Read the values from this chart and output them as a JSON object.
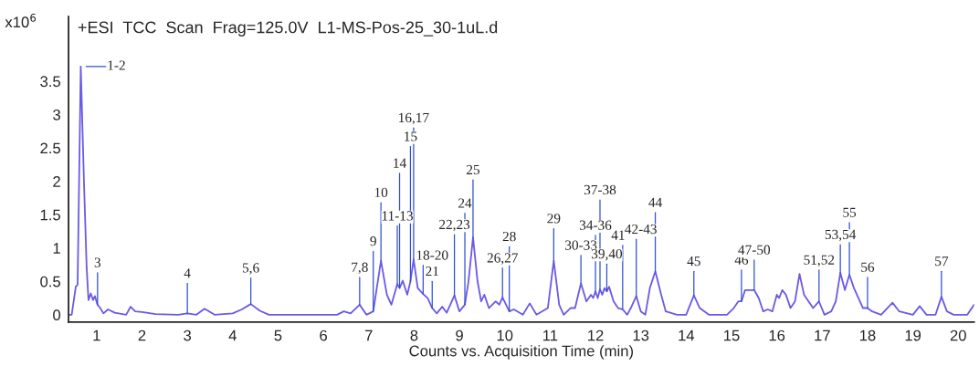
{
  "chart_data": {
    "type": "line",
    "title": "+ESI  TCC  Scan  Frag=125.0V  L1-MS-Pos-25_30-1uL.d",
    "xlabel": "Counts vs. Acquisition Time (min)",
    "xlim": [
      0.38,
      20.35
    ],
    "ylim": [
      -0.11,
      4.47
    ],
    "xticks": [
      1,
      2,
      3,
      4,
      5,
      6,
      7,
      8,
      9,
      10,
      11,
      12,
      13,
      14,
      15,
      16,
      17,
      18,
      19,
      20
    ],
    "yticks": [
      0,
      0.5,
      1,
      1.5,
      2,
      2.5,
      3,
      3.5
    ],
    "grid": false,
    "legend": false,
    "marker": "none",
    "line_style": "solid",
    "series": [
      {
        "color": "#6a5ae6",
        "x": [
          0.38,
          0.45,
          0.54,
          0.58,
          0.65,
          0.72,
          0.78,
          0.82,
          0.87,
          0.92,
          0.96,
          1.02,
          1.08,
          1.15,
          1.25,
          1.4,
          1.65,
          1.75,
          1.85,
          2.0,
          2.3,
          2.8,
          3.0,
          3.2,
          3.38,
          3.6,
          4.0,
          4.2,
          4.4,
          4.6,
          4.8,
          6.3,
          6.45,
          6.6,
          6.8,
          6.95,
          7.1,
          7.27,
          7.4,
          7.5,
          7.63,
          7.68,
          7.75,
          7.85,
          7.92,
          7.99,
          8.08,
          8.2,
          8.3,
          8.4,
          8.5,
          8.62,
          8.72,
          8.89,
          9.0,
          9.12,
          9.2,
          9.3,
          9.4,
          9.48,
          9.55,
          9.65,
          9.8,
          9.88,
          9.95,
          10.1,
          10.2,
          10.4,
          10.55,
          10.7,
          10.95,
          11.08,
          11.2,
          11.3,
          11.45,
          11.55,
          11.68,
          11.8,
          11.9,
          11.95,
          12.0,
          12.05,
          12.1,
          12.15,
          12.2,
          12.25,
          12.3,
          12.4,
          12.5,
          12.6,
          12.7,
          12.78,
          12.9,
          13.0,
          13.1,
          13.2,
          13.32,
          13.45,
          13.55,
          13.8,
          14.0,
          14.17,
          14.3,
          14.5,
          14.9,
          15.05,
          15.15,
          15.22,
          15.3,
          15.5,
          15.6,
          15.7,
          15.8,
          15.9,
          16.0,
          16.05,
          16.12,
          16.2,
          16.3,
          16.4,
          16.5,
          16.6,
          16.7,
          16.8,
          16.93,
          17.05,
          17.2,
          17.3,
          17.4,
          17.5,
          17.6,
          17.7,
          17.8,
          17.9,
          18.0,
          18.1,
          18.3,
          18.55,
          18.7,
          19.0,
          19.15,
          19.3,
          19.5,
          19.63,
          19.75,
          19.9,
          20.2,
          20.35
        ],
        "values": [
          0,
          0,
          0.42,
          0.45,
          3.72,
          2.0,
          0.7,
          0.22,
          0.32,
          0.22,
          0.28,
          0.15,
          0.1,
          0.02,
          0.08,
          0.03,
          0,
          0.12,
          0.05,
          0.04,
          0.01,
          0,
          0.02,
          0,
          0.09,
          0,
          0.02,
          0.08,
          0.16,
          0.06,
          0,
          0,
          0.05,
          0.02,
          0.15,
          0,
          0.05,
          0.81,
          0.3,
          0.15,
          0.46,
          0.4,
          0.51,
          0.3,
          0.5,
          0.83,
          0.4,
          0.31,
          0.25,
          0.1,
          0.02,
          0.12,
          0.03,
          0.29,
          0.05,
          0.15,
          0.5,
          1.16,
          0.5,
          0.2,
          0.3,
          0.1,
          0.2,
          0.15,
          0.26,
          0.05,
          0.08,
          0,
          0.17,
          0,
          0.1,
          0.81,
          0.15,
          0,
          0.1,
          0.1,
          0.47,
          0.2,
          0.3,
          0.25,
          0.35,
          0.25,
          0.38,
          0.3,
          0.4,
          0.35,
          0.42,
          0.2,
          0.1,
          0.08,
          0,
          0.1,
          0.28,
          0.05,
          0,
          0.4,
          0.65,
          0.3,
          0.05,
          0,
          0,
          0.29,
          0.1,
          0,
          0,
          0.1,
          0.2,
          0.2,
          0.37,
          0.37,
          0.25,
          0.05,
          0.08,
          0.05,
          0.3,
          0.25,
          0.37,
          0.3,
          0.1,
          0.2,
          0.61,
          0.3,
          0.2,
          0.1,
          0.2,
          0,
          0.05,
          0.2,
          0.63,
          0.37,
          0.6,
          0.4,
          0.25,
          0.1,
          0.1,
          0.05,
          0,
          0.18,
          0.05,
          0,
          0.13,
          0,
          0,
          0.27,
          0.05,
          0,
          0,
          0.15
        ]
      }
    ],
    "annotations": [
      "x10$^{6}$",
      {
        "text": "1-2",
        "x": 0.65,
        "y": 3.72
      },
      {
        "text": "3",
        "x": 1.02,
        "y": 0.15
      },
      {
        "text": "4",
        "x": 3.0,
        "y": 0.02
      },
      {
        "text": "5,6",
        "x": 4.4,
        "y": 0.16
      },
      {
        "text": "7,8",
        "x": 6.8,
        "y": 0.15
      },
      {
        "text": "9",
        "x": 7.1,
        "y": 0.05
      },
      {
        "text": "10",
        "x": 7.27,
        "y": 0.81
      },
      {
        "text": "11-13",
        "x": 7.63,
        "y": 0.46
      },
      {
        "text": "14",
        "x": 7.68,
        "y": 0.4
      },
      {
        "text": "15",
        "x": 7.92,
        "y": 0.5
      },
      {
        "text": "16,17",
        "x": 7.99,
        "y": 0.83
      },
      {
        "text": "18-20",
        "x": 8.2,
        "y": 0.31
      },
      {
        "text": "21",
        "x": 8.4,
        "y": 0.1
      },
      {
        "text": "22,23",
        "x": 8.89,
        "y": 0.29
      },
      {
        "text": "24",
        "x": 9.12,
        "y": 0.15
      },
      {
        "text": "25",
        "x": 9.3,
        "y": 1.16
      },
      {
        "text": "26,27",
        "x": 9.95,
        "y": 0.26
      },
      {
        "text": "28",
        "x": 10.1,
        "y": 0.05
      },
      {
        "text": "29",
        "x": 11.08,
        "y": 0.81
      },
      {
        "text": "30-33",
        "x": 11.68,
        "y": 0.47
      },
      {
        "text": "34-36",
        "x": 12.0,
        "y": 0.35
      },
      {
        "text": "37-38",
        "x": 12.1,
        "y": 0.38
      },
      {
        "text": "39,40",
        "x": 12.25,
        "y": 0.35
      },
      {
        "text": "41",
        "x": 12.6,
        "y": 0.08
      },
      {
        "text": "42-43",
        "x": 12.9,
        "y": 0.28
      },
      {
        "text": "44",
        "x": 13.32,
        "y": 0.65
      },
      {
        "text": "45",
        "x": 14.17,
        "y": 0.29
      },
      {
        "text": "46",
        "x": 15.22,
        "y": 0.2
      },
      {
        "text": "47-50",
        "x": 15.5,
        "y": 0.37
      },
      {
        "text": "51,52",
        "x": 16.93,
        "y": 0.2
      },
      {
        "text": "53,54",
        "x": 17.4,
        "y": 0.63
      },
      {
        "text": "55",
        "x": 17.6,
        "y": 0.6
      },
      {
        "text": "56",
        "x": 18.0,
        "y": 0.1
      },
      {
        "text": "57",
        "x": 19.63,
        "y": 0.27
      }
    ]
  }
}
